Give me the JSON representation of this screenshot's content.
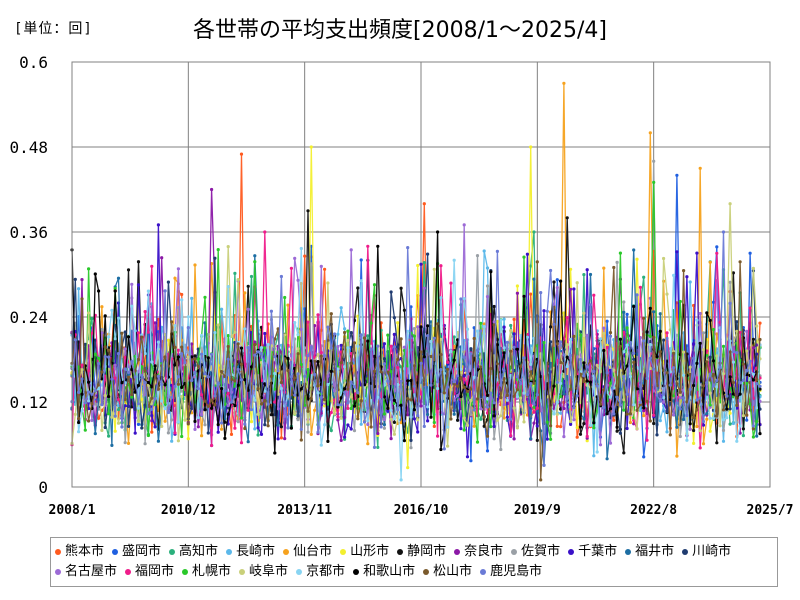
{
  "header": {
    "unit": "[単位：回]",
    "title": "各世帯の平均支出頻度[2008/1～2025/4]"
  },
  "chart_data": {
    "type": "line",
    "title": "各世帯の平均支出頻度[2008/1～2025/4]",
    "ylabel": "[単位：回]",
    "xlabel": "",
    "ylim": [
      0,
      0.6
    ],
    "yticks": [
      "0",
      "0.12",
      "0.24",
      "0.36",
      "0.48",
      "0.6"
    ],
    "xticks": [
      "2008/1",
      "2010/12",
      "2013/11",
      "2016/10",
      "2019/9",
      "2022/8",
      "2025/7"
    ],
    "grid": true,
    "legend_position": "bottom",
    "start": "2008/1",
    "end": "2025/4",
    "series": [
      {
        "name": "熊本市",
        "color": "#ff5a1f",
        "peaks": [
          [
            "2012/4",
            0.47
          ],
          [
            "2016/11",
            0.4
          ]
        ]
      },
      {
        "name": "盛岡市",
        "color": "#1f5fe0",
        "peaks": [
          [
            "2023/3",
            0.44
          ],
          [
            "2025/1",
            0.33
          ]
        ]
      },
      {
        "name": "高知市",
        "color": "#2bb07c",
        "peaks": [
          [
            "2019/8",
            0.36
          ]
        ]
      },
      {
        "name": "長崎市",
        "color": "#5bb8ea",
        "peaks": [
          [
            "2008/3",
            0.28
          ]
        ]
      },
      {
        "name": "仙台市",
        "color": "#f6a21e",
        "peaks": [
          [
            "2020/5",
            0.57
          ],
          [
            "2022/7",
            0.5
          ],
          [
            "2023/10",
            0.45
          ]
        ]
      },
      {
        "name": "山形市",
        "color": "#f3ef2e",
        "peaks": [
          [
            "2014/1",
            0.48
          ],
          [
            "2019/7",
            0.48
          ]
        ]
      },
      {
        "name": "静岡市",
        "color": "#111111",
        "peaks": [
          [
            "2013/12",
            0.39
          ],
          [
            "2020/6",
            0.38
          ]
        ]
      },
      {
        "name": "奈良市",
        "color": "#8b18a6",
        "peaks": [
          [
            "2011/7",
            0.42
          ]
        ]
      },
      {
        "name": "佐賀市",
        "color": "#9aa0a6",
        "peaks": [
          [
            "2022/8",
            0.46
          ]
        ]
      },
      {
        "name": "千葉市",
        "color": "#3a10c8",
        "peaks": [
          [
            "2010/3",
            0.37
          ]
        ]
      },
      {
        "name": "福井市",
        "color": "#1d6ea3",
        "peaks": [
          [
            "2021/1",
            0.3
          ]
        ]
      },
      {
        "name": "川崎市",
        "color": "#1f3b70",
        "peaks": [
          [
            "2015/6",
            0.32
          ]
        ]
      },
      {
        "name": "名古屋市",
        "color": "#9c6ad6",
        "peaks": [
          [
            "2017/11",
            0.37
          ]
        ]
      },
      {
        "name": "福岡市",
        "color": "#ef1c8a",
        "peaks": [
          [
            "2012/11",
            0.36
          ]
        ]
      },
      {
        "name": "札幌市",
        "color": "#2ac82a",
        "peaks": [
          [
            "2022/8",
            0.43
          ]
        ]
      },
      {
        "name": "岐阜市",
        "color": "#c9d07a",
        "peaks": [
          [
            "2024/7",
            0.4
          ]
        ]
      },
      {
        "name": "京都市",
        "color": "#88d4f2",
        "peaks": [
          [
            "2016/4",
            0.01
          ]
        ]
      },
      {
        "name": "和歌山市",
        "color": "#000000",
        "peaks": [
          [
            "2017/3",
            0.36
          ]
        ]
      },
      {
        "name": "松山市",
        "color": "#7a5a2c",
        "peaks": [
          [
            "2019/10",
            0.01
          ]
        ]
      },
      {
        "name": "鹿児島市",
        "color": "#6a7ad6",
        "peaks": [
          [
            "2024/5",
            0.36
          ]
        ]
      }
    ]
  }
}
